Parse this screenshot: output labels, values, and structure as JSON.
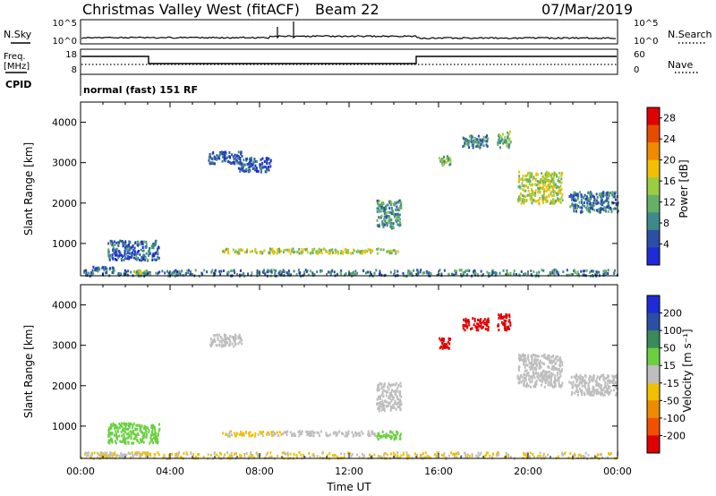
{
  "header": {
    "station": "Christmas Valley West (fitACF)",
    "beam": "Beam 22",
    "date": "07/Mar/2019"
  },
  "summary": {
    "nsky_label": "N.Sky",
    "nsearch_label": "N.Search",
    "noise_ticks": [
      "10^5",
      "10^0"
    ],
    "freq_label": "Freq.",
    "freq_unit": "[MHz]",
    "freq_ticks": [
      "18",
      "8"
    ],
    "nave_label": "Nave",
    "nave_ticks": [
      "60",
      "0"
    ],
    "cpid_label": "CPID",
    "cpid_value": "normal (fast) 151 RF"
  },
  "colors": {
    "power_scale": [
      "#1f2bd6",
      "#2b4fa6",
      "#3d8a8a",
      "#66b066",
      "#9acc44",
      "#f2c000",
      "#f08a00",
      "#e84a00",
      "#e00000"
    ],
    "velocity_scale": [
      "#1f2bd6",
      "#2b4fa6",
      "#3a8a5a",
      "#6ad040",
      "#c0c0c0",
      "#f2c000",
      "#f08a00",
      "#f05000",
      "#e00000"
    ],
    "ground_scatter": "#bebebe"
  },
  "chart_data": [
    {
      "type": "heatmap",
      "title": "Power",
      "xlabel": "",
      "ylabel": "Slant Range [km]",
      "xlim": [
        0,
        24
      ],
      "ylim": [
        200,
        4500
      ],
      "y_ticks": [
        "1000",
        "2000",
        "3000",
        "4000"
      ],
      "colorbar": {
        "label": "Power [dB]",
        "ticks": [
          "4",
          "8",
          "12",
          "16",
          "20",
          "24",
          "28"
        ],
        "range": [
          0,
          30
        ]
      },
      "scatter_regions": [
        {
          "t": [
            0.5,
            1.5
          ],
          "r": [
            350,
            450
          ],
          "v": 6
        },
        {
          "t": [
            1.2,
            3.5
          ],
          "r": [
            600,
            1100
          ],
          "v": 6
        },
        {
          "t": [
            2.2,
            3.0
          ],
          "r": [
            280,
            360
          ],
          "v": 14
        },
        {
          "t": [
            5.7,
            7.2
          ],
          "r": [
            3000,
            3300
          ],
          "v": 5
        },
        {
          "t": [
            7.0,
            8.5
          ],
          "r": [
            2800,
            3150
          ],
          "v": 5
        },
        {
          "t": [
            6.3,
            14.2
          ],
          "r": [
            780,
            900
          ],
          "v": 15
        },
        {
          "t": [
            13.2,
            14.3
          ],
          "r": [
            1400,
            2100
          ],
          "v": 9
        },
        {
          "t": [
            16.0,
            16.5
          ],
          "r": [
            2950,
            3200
          ],
          "v": 12
        },
        {
          "t": [
            17.0,
            18.2
          ],
          "r": [
            3400,
            3700
          ],
          "v": 8
        },
        {
          "t": [
            18.6,
            19.2
          ],
          "r": [
            3400,
            3800
          ],
          "v": 12
        },
        {
          "t": [
            19.5,
            21.5
          ],
          "r": [
            2000,
            2800
          ],
          "v": 15
        },
        {
          "t": [
            21.8,
            24.0
          ],
          "r": [
            1800,
            2300
          ],
          "v": 7
        },
        {
          "t": [
            0.0,
            24.0
          ],
          "r": [
            220,
            380
          ],
          "v": 8
        }
      ]
    },
    {
      "type": "heatmap",
      "title": "Velocity",
      "xlabel": "Time UT",
      "ylabel": "Slant Range [km]",
      "xlim": [
        0,
        24
      ],
      "ylim": [
        200,
        4500
      ],
      "x_ticks": [
        "00:00",
        "04:00",
        "08:00",
        "12:00",
        "16:00",
        "20:00",
        "00:00"
      ],
      "y_ticks": [
        "1000",
        "2000",
        "3000",
        "4000"
      ],
      "colorbar": {
        "label": "Velocity [m s⁻¹]",
        "ticks": [
          "200",
          "100",
          "50",
          "15",
          "-15",
          "-50",
          "-100",
          "-200"
        ],
        "range": [
          -250,
          250
        ]
      },
      "scatter_regions": [
        {
          "t": [
            1.2,
            3.5
          ],
          "r": [
            600,
            1100
          ],
          "v": 60
        },
        {
          "t": [
            0.5,
            3.0
          ],
          "r": [
            280,
            380
          ],
          "v": 0
        },
        {
          "t": [
            5.7,
            7.2
          ],
          "r": [
            3000,
            3300
          ],
          "v": 0
        },
        {
          "t": [
            6.3,
            9.0
          ],
          "r": [
            780,
            900
          ],
          "v": -30
        },
        {
          "t": [
            9.0,
            13.2
          ],
          "r": [
            780,
            900
          ],
          "v": 0
        },
        {
          "t": [
            13.2,
            14.3
          ],
          "r": [
            700,
            900
          ],
          "v": 60
        },
        {
          "t": [
            13.2,
            14.3
          ],
          "r": [
            1400,
            2100
          ],
          "v": 0
        },
        {
          "t": [
            16.0,
            16.5
          ],
          "r": [
            2950,
            3200
          ],
          "v": -220
        },
        {
          "t": [
            17.0,
            18.2
          ],
          "r": [
            3400,
            3700
          ],
          "v": -220
        },
        {
          "t": [
            18.6,
            19.2
          ],
          "r": [
            3400,
            3800
          ],
          "v": -220
        },
        {
          "t": [
            19.5,
            21.5
          ],
          "r": [
            2000,
            2800
          ],
          "v": 0
        },
        {
          "t": [
            21.8,
            24.0
          ],
          "r": [
            1800,
            2300
          ],
          "v": 0
        },
        {
          "t": [
            0.0,
            24.0
          ],
          "r": [
            220,
            380
          ],
          "v": -30
        }
      ]
    }
  ]
}
